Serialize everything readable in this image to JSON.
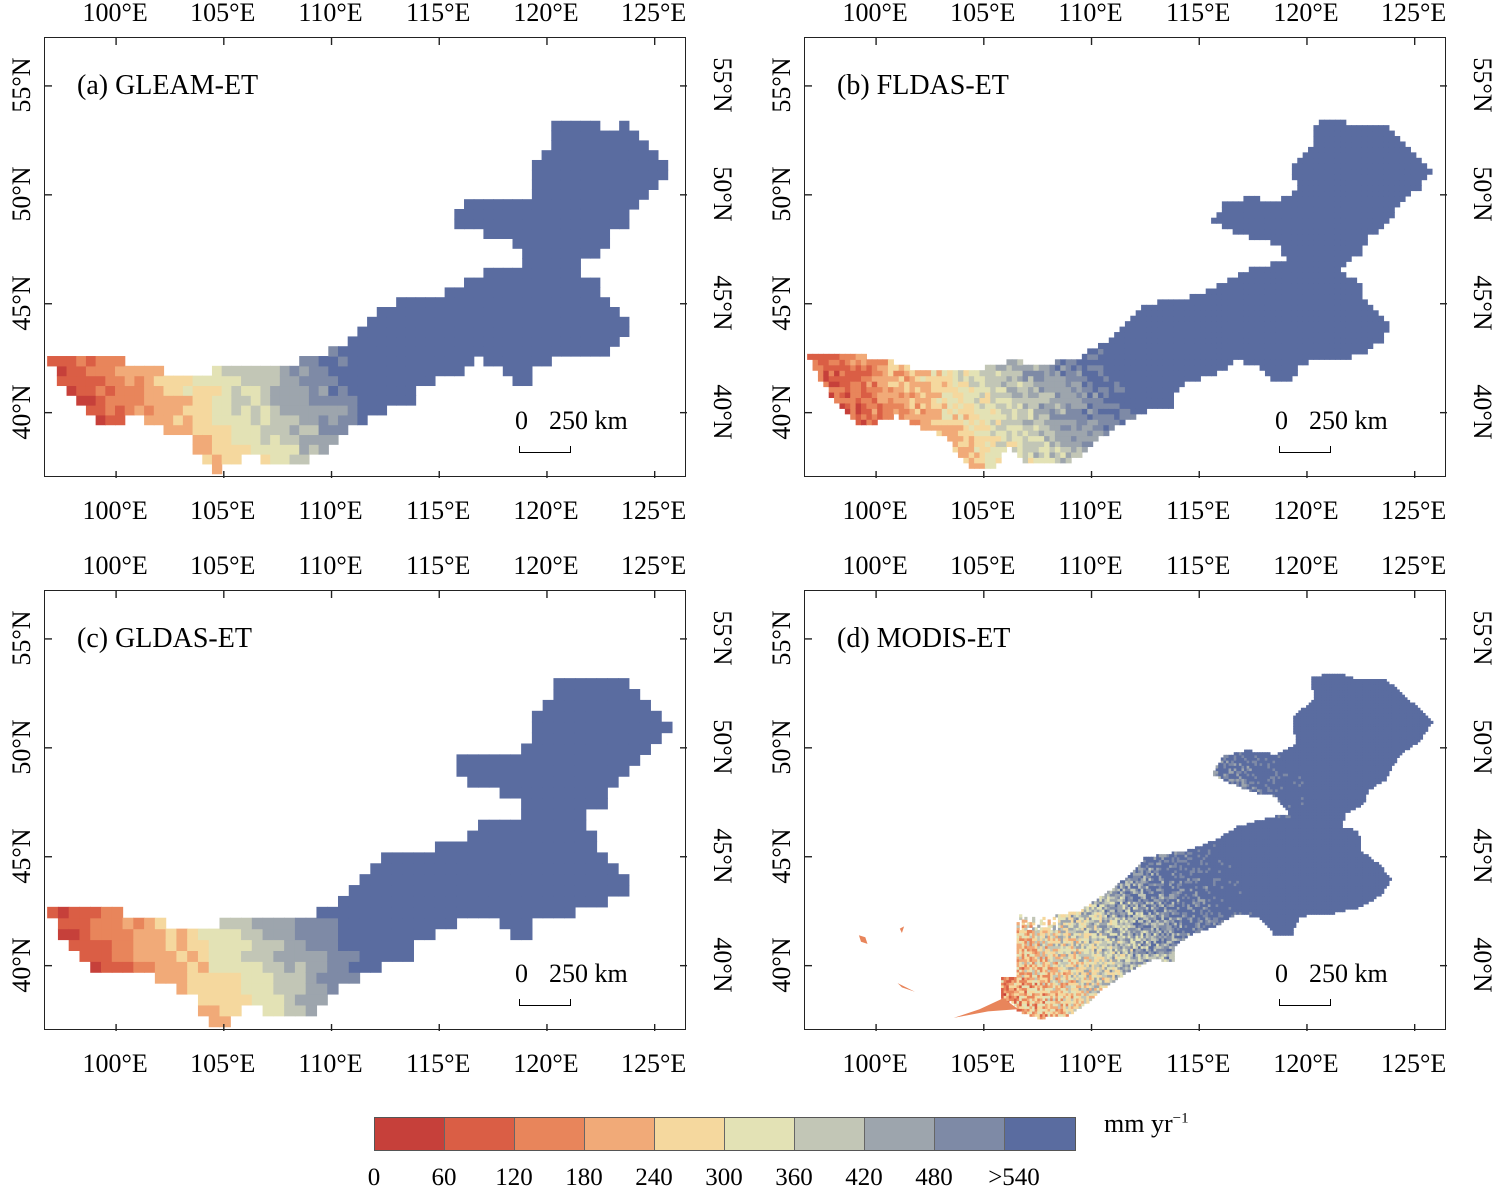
{
  "panels": [
    {
      "id": "a",
      "title": "(a) GLEAM-ET"
    },
    {
      "id": "b",
      "title": "(b) FLDAS-ET"
    },
    {
      "id": "c",
      "title": "(c) GLDAS-ET"
    },
    {
      "id": "d",
      "title": "(d) MODIS-ET"
    }
  ],
  "axes": {
    "lon_ticks": [
      "100°E",
      "105°E",
      "110°E",
      "115°E",
      "120°E",
      "125°E"
    ],
    "lat_ticks": [
      "40°N",
      "45°N",
      "50°N",
      "55°N"
    ],
    "lon_values": [
      100,
      105,
      110,
      115,
      120,
      125
    ],
    "lat_values": [
      40,
      45,
      50,
      55
    ],
    "lon_range": [
      96.7,
      126.5
    ],
    "lat_range": [
      37.0,
      57.2
    ]
  },
  "scale_bar": {
    "zero": "0",
    "distance": "250 km"
  },
  "legend": {
    "unit": "mm yr",
    "unit_exp": "−1",
    "ticks": [
      "0",
      "60",
      "120",
      "180",
      "240",
      "300",
      "360",
      "420",
      "480",
      ">540"
    ],
    "colors": [
      "#c6403a",
      "#da5e45",
      "#e8855b",
      "#f1aa78",
      "#f5d89e",
      "#e3e2b5",
      "#c2c6b6",
      "#9da5ad",
      "#7e8aa6",
      "#5a6ca0"
    ]
  },
  "region": {
    "outline": [
      [
        96.8,
        42.7
      ],
      [
        99.5,
        42.6
      ],
      [
        100.8,
        42.3
      ],
      [
        102.3,
        41.9
      ],
      [
        104.5,
        41.9
      ],
      [
        106.3,
        42.4
      ],
      [
        107.7,
        42.2
      ],
      [
        109.4,
        42.5
      ],
      [
        110.8,
        43.4
      ],
      [
        111.8,
        44.2
      ],
      [
        112.5,
        45.0
      ],
      [
        113.3,
        45.1
      ],
      [
        114.5,
        45.3
      ],
      [
        115.8,
        45.8
      ],
      [
        116.8,
        46.4
      ],
      [
        117.5,
        46.6
      ],
      [
        118.3,
        46.8
      ],
      [
        119.2,
        47.0
      ],
      [
        118.5,
        47.8
      ],
      [
        117.8,
        47.9
      ],
      [
        116.9,
        48.2
      ],
      [
        116.2,
        48.5
      ],
      [
        115.6,
        48.8
      ],
      [
        116.1,
        49.6
      ],
      [
        117.2,
        49.9
      ],
      [
        118.6,
        49.7
      ],
      [
        119.5,
        50.2
      ],
      [
        119.3,
        51.4
      ],
      [
        120.3,
        52.2
      ],
      [
        120.2,
        53.3
      ],
      [
        121.5,
        53.4
      ],
      [
        122.6,
        53.1
      ],
      [
        123.6,
        53.2
      ],
      [
        124.3,
        52.6
      ],
      [
        125.2,
        51.8
      ],
      [
        125.8,
        51.2
      ],
      [
        125.2,
        50.3
      ],
      [
        124.3,
        49.7
      ],
      [
        123.6,
        48.5
      ],
      [
        122.9,
        48.1
      ],
      [
        122.6,
        47.4
      ],
      [
        121.8,
        47.0
      ],
      [
        121.6,
        46.4
      ],
      [
        122.4,
        46.2
      ],
      [
        122.5,
        45.3
      ],
      [
        123.3,
        44.7
      ],
      [
        123.9,
        44.0
      ],
      [
        123.5,
        43.3
      ],
      [
        122.5,
        42.7
      ],
      [
        121.2,
        42.4
      ],
      [
        120.3,
        42.4
      ],
      [
        119.6,
        42.2
      ],
      [
        119.3,
        41.4
      ],
      [
        118.5,
        41.4
      ],
      [
        117.8,
        42.2
      ],
      [
        116.8,
        42.4
      ],
      [
        115.7,
        41.8
      ],
      [
        114.5,
        41.4
      ],
      [
        113.9,
        40.9
      ],
      [
        113.8,
        40.2
      ],
      [
        112.9,
        40.3
      ],
      [
        111.5,
        39.6
      ],
      [
        110.6,
        39.0
      ],
      [
        110.1,
        38.5
      ],
      [
        108.9,
        37.7
      ],
      [
        107.6,
        37.6
      ],
      [
        106.6,
        37.9
      ],
      [
        106.3,
        38.4
      ],
      [
        105.8,
        38.2
      ],
      [
        105.7,
        37.6
      ],
      [
        104.5,
        37.3
      ],
      [
        103.7,
        38.1
      ],
      [
        103.6,
        38.7
      ],
      [
        102.2,
        39.3
      ],
      [
        101.6,
        39.5
      ],
      [
        100.9,
        39.9
      ],
      [
        99.9,
        39.5
      ],
      [
        98.9,
        39.6
      ],
      [
        97.8,
        40.9
      ],
      [
        97.2,
        41.8
      ],
      [
        96.8,
        42.7
      ]
    ]
  },
  "modis_fragments": [
    [
      [
        99.2,
        41.4
      ],
      [
        99.5,
        41.3
      ],
      [
        99.6,
        41.0
      ],
      [
        99.3,
        41.1
      ]
    ],
    [
      [
        101.1,
        41.7
      ],
      [
        101.3,
        41.8
      ],
      [
        101.2,
        41.5
      ]
    ],
    [
      [
        101.0,
        39.2
      ],
      [
        101.8,
        38.8
      ],
      [
        101.2,
        39.0
      ]
    ],
    [
      [
        103.6,
        37.6
      ],
      [
        105.2,
        37.9
      ],
      [
        106.6,
        38.0
      ],
      [
        105.9,
        38.5
      ],
      [
        104.8,
        38.0
      ]
    ]
  ]
}
